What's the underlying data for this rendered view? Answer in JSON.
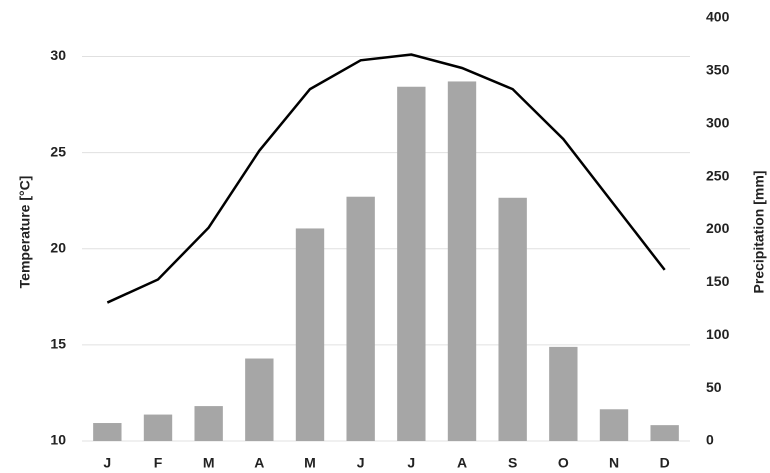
{
  "chart_data": {
    "type": "bar-line",
    "categories": [
      "J",
      "F",
      "M",
      "A",
      "M",
      "J",
      "J",
      "A",
      "S",
      "O",
      "N",
      "D"
    ],
    "series": [
      {
        "name": "Precipitation",
        "type": "bar",
        "axis": "y2",
        "color": "#a6a6a6",
        "values": [
          17,
          25,
          33,
          78,
          201,
          231,
          335,
          340,
          230,
          89,
          30,
          15
        ]
      },
      {
        "name": "Temperature",
        "type": "line",
        "axis": "y",
        "color": "#000000",
        "values": [
          17.2,
          18.4,
          21.1,
          25.1,
          28.3,
          29.8,
          30.1,
          29.4,
          28.3,
          25.7,
          22.3,
          18.9
        ]
      }
    ],
    "ylabel": "Temperature [°C]",
    "y2label": "Precipitation [mm]",
    "ylim": [
      10,
      32
    ],
    "yticks": [
      10,
      15,
      20,
      25,
      30
    ],
    "y2lim": [
      0,
      400
    ],
    "y2ticks": [
      0,
      50,
      100,
      150,
      200,
      250,
      300,
      350,
      400
    ],
    "grid": true
  }
}
